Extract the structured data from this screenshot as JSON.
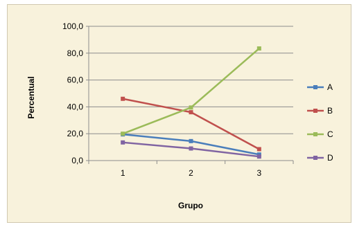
{
  "chart_data": {
    "type": "line",
    "xlabel": "Grupo",
    "ylabel": "Percentual",
    "categories": [
      "1",
      "2",
      "3"
    ],
    "ylim": [
      0,
      100
    ],
    "y_ticks": [
      "0,0",
      "20,0",
      "40,0",
      "60,0",
      "80,0",
      "100,0"
    ],
    "grid": true,
    "legend_position": "right",
    "series": [
      {
        "name": "A",
        "color": "#4a7ebb",
        "values": [
          19.5,
          14.5,
          4.5
        ]
      },
      {
        "name": "B",
        "color": "#c0504d",
        "values": [
          46,
          36,
          8.5
        ]
      },
      {
        "name": "C",
        "color": "#9bbb59",
        "values": [
          20,
          39.5,
          83.5
        ]
      },
      {
        "name": "D",
        "color": "#8064a2",
        "values": [
          13.5,
          9,
          3
        ]
      }
    ]
  }
}
